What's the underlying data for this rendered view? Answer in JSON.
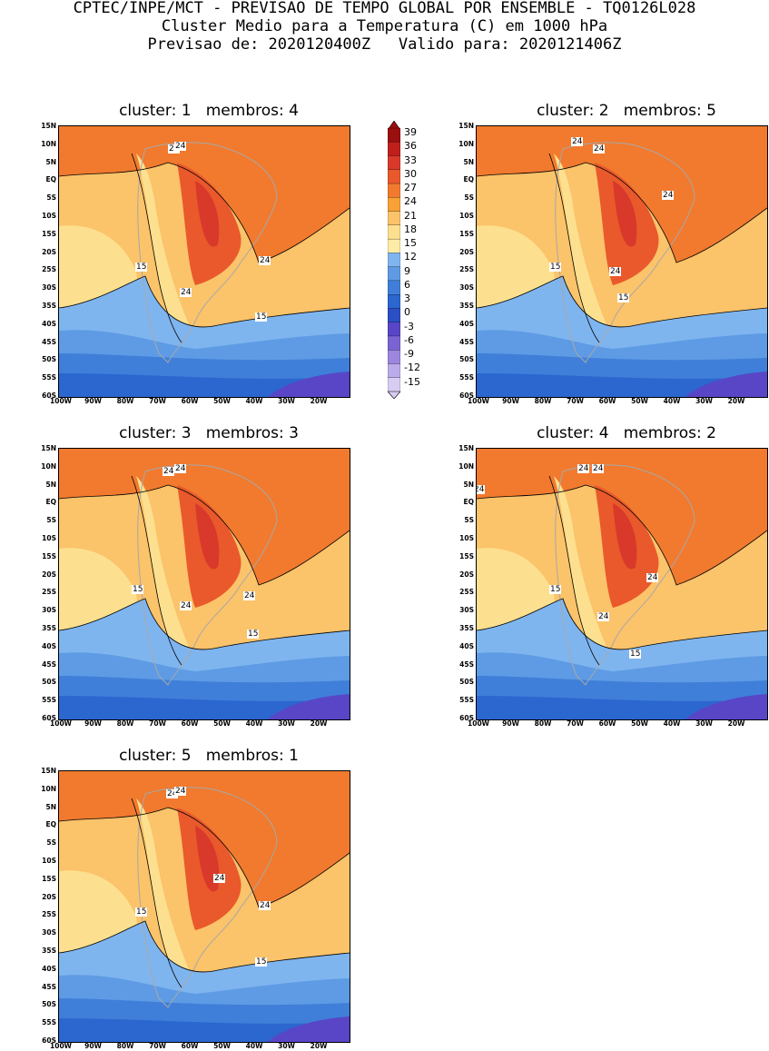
{
  "header": {
    "line1": "CPTEC/INPE/MCT - PREVISAO DE TEMPO GLOBAL POR ENSEMBLE - TQ0126L028",
    "line2": "Cluster Medio para a Temperatura (C) em 1000 hPa",
    "line3": "Previsao de: 2020120400Z   Valido para: 2020121406Z"
  },
  "axes": {
    "lat_labels": [
      "15N",
      "10N",
      "5N",
      "EQ",
      "5S",
      "10S",
      "15S",
      "20S",
      "25S",
      "30S",
      "35S",
      "40S",
      "45S",
      "50S",
      "55S",
      "60S"
    ],
    "lon_labels": [
      "100W",
      "90W",
      "80W",
      "70W",
      "60W",
      "50W",
      "40W",
      "30W",
      "20W"
    ]
  },
  "colorbar": {
    "levels": [
      "39",
      "36",
      "33",
      "30",
      "27",
      "24",
      "21",
      "18",
      "15",
      "12",
      "9",
      "6",
      "3",
      "0",
      "-3",
      "-6",
      "-9",
      "-12",
      "-15"
    ],
    "colors": [
      "#9b0f0f",
      "#c0201c",
      "#d8392a",
      "#e9592b",
      "#f17a2e",
      "#f7a136",
      "#fbc36a",
      "#fde08f",
      "#fdeca6",
      "#7fb5ef",
      "#5e9be4",
      "#3f7fd9",
      "#2c66cf",
      "#2b4fc4",
      "#5846c7",
      "#7b63d3",
      "#9c86de",
      "#bcabea",
      "#d8ccf3"
    ]
  },
  "panels": [
    {
      "title": "cluster: 1   membros: 4",
      "labels": [
        "24",
        "24",
        "24",
        "24",
        "15",
        "15"
      ]
    },
    {
      "title": "cluster: 2   membros: 5",
      "labels": [
        "24",
        "24",
        "24",
        "24",
        "15",
        "15"
      ]
    },
    {
      "title": "cluster: 3   membros: 3",
      "labels": [
        "24",
        "24",
        "24",
        "24",
        "15",
        "15"
      ]
    },
    {
      "title": "cluster: 4   membros: 2",
      "labels": [
        "24",
        "24",
        "24",
        "24",
        "24",
        "15",
        "15"
      ]
    },
    {
      "title": "cluster: 5   membros: 1",
      "labels": [
        "24",
        "24",
        "24",
        "24",
        "15",
        "15"
      ]
    }
  ]
}
